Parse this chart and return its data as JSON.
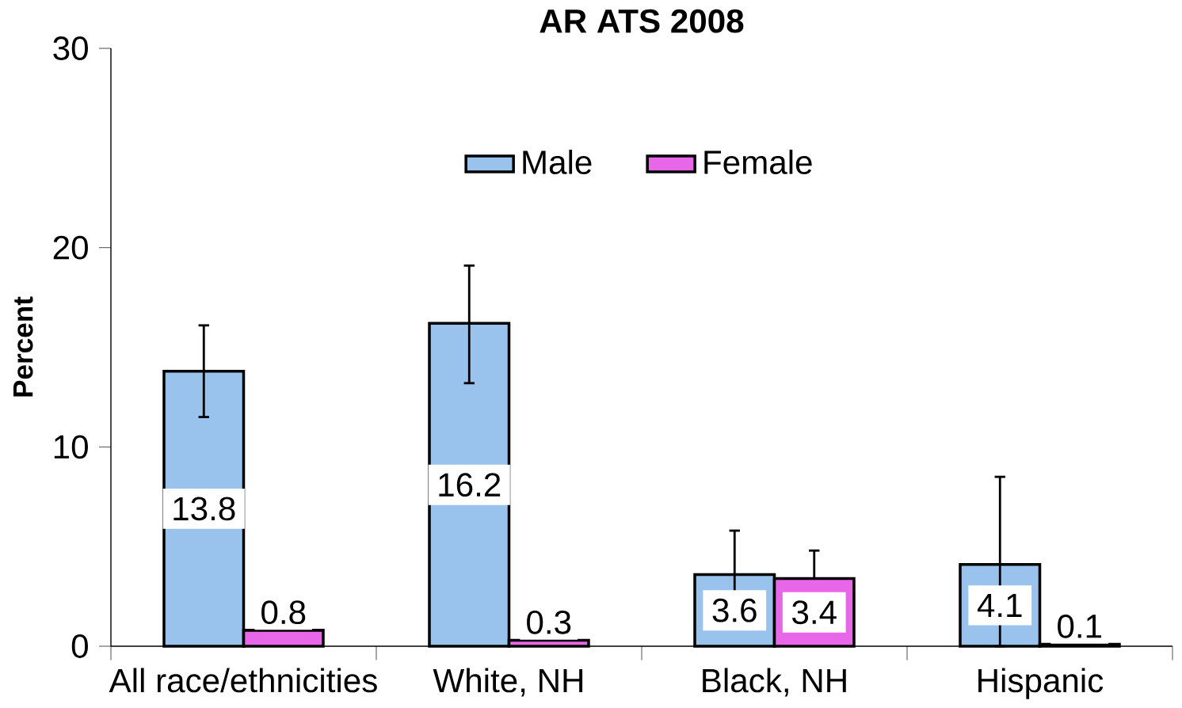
{
  "chart_data": {
    "type": "bar",
    "title": "AR ATS 2008",
    "ylabel": "Percent",
    "categories": [
      "All race/ethnicities",
      "White, NH",
      "Black, NH",
      "Hispanic"
    ],
    "series": [
      {
        "name": "Male",
        "color": "#99c2ec",
        "values": [
          13.8,
          16.2,
          3.6,
          4.1
        ],
        "errors": [
          [
            11.5,
            16.1
          ],
          [
            13.2,
            19.1
          ],
          [
            1.4,
            5.8
          ],
          [
            0,
            8.5
          ]
        ]
      },
      {
        "name": "Female",
        "color": "#e866e8",
        "values": [
          0.8,
          0.3,
          3.4,
          0.1
        ],
        "errors": [
          null,
          null,
          [
            3.4,
            4.8
          ],
          null
        ]
      }
    ],
    "ylim": [
      0,
      30
    ],
    "yticks": [
      0,
      10,
      20,
      30
    ],
    "data_labels": true,
    "grid": false,
    "legend": "top"
  }
}
